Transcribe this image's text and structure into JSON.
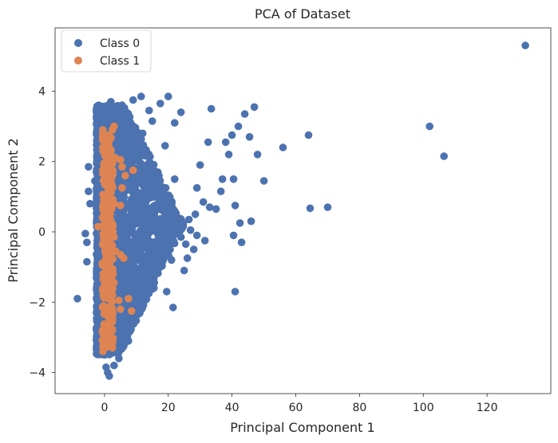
{
  "chart_data": {
    "type": "scatter",
    "title": "PCA of Dataset",
    "xlabel": "Principal Component 1",
    "ylabel": "Principal Component 2",
    "xlim": [
      -15.5,
      140
    ],
    "ylim": [
      -4.6,
      5.8
    ],
    "xticks": [
      0,
      20,
      40,
      60,
      80,
      100,
      120
    ],
    "yticks": [
      -4,
      -2,
      0,
      2,
      4
    ],
    "xtick_labels": [
      "0",
      "20",
      "40",
      "60",
      "80",
      "100",
      "120"
    ],
    "ytick_labels": [
      "−4",
      "−2",
      "0",
      "2",
      "4"
    ],
    "grid": false,
    "legend_position": "upper-left",
    "colors": {
      "Class 0": "#4c72b0",
      "Class 1": "#dd8452"
    },
    "series": [
      {
        "name": "Class 0",
        "points": [
          [
            132,
            5.3
          ],
          [
            102,
            3.0
          ],
          [
            106.5,
            2.15
          ],
          [
            64,
            2.75
          ],
          [
            56,
            2.4
          ],
          [
            70,
            0.7
          ],
          [
            64.5,
            0.67
          ],
          [
            47,
            3.55
          ],
          [
            44,
            3.35
          ],
          [
            42,
            3.0
          ],
          [
            40,
            2.75
          ],
          [
            38,
            2.55
          ],
          [
            45.5,
            2.7
          ],
          [
            48,
            2.2
          ],
          [
            50,
            1.45
          ],
          [
            46,
            0.3
          ],
          [
            41,
            0.75
          ],
          [
            42.5,
            0.25
          ],
          [
            40.5,
            -0.1
          ],
          [
            43,
            -0.3
          ],
          [
            41,
            -1.7
          ],
          [
            33.5,
            3.5
          ],
          [
            32.5,
            2.55
          ],
          [
            39,
            2.2
          ],
          [
            37,
            1.5
          ],
          [
            40.5,
            1.5
          ],
          [
            36.5,
            1.15
          ],
          [
            29,
            1.25
          ],
          [
            31,
            0.85
          ],
          [
            35,
            0.65
          ],
          [
            33,
            0.7
          ],
          [
            28.5,
            0.5
          ],
          [
            26.5,
            0.35
          ],
          [
            29,
            -0.1
          ],
          [
            31.5,
            -0.25
          ],
          [
            27,
            0.05
          ],
          [
            24,
            -0.15
          ],
          [
            25.5,
            -0.35
          ],
          [
            28,
            -0.5
          ],
          [
            26,
            -0.75
          ],
          [
            25,
            -1.1
          ],
          [
            22,
            3.1
          ],
          [
            20,
            3.85
          ],
          [
            17.5,
            3.65
          ],
          [
            11.5,
            3.85
          ],
          [
            19,
            2.45
          ],
          [
            22,
            1.5
          ],
          [
            21,
            -0.8
          ],
          [
            21.5,
            -2.15
          ],
          [
            19.5,
            -1.7
          ],
          [
            15.5,
            -1.6
          ],
          [
            10,
            -2.2
          ],
          [
            7.5,
            -3.1
          ],
          [
            4.5,
            -3.6
          ],
          [
            -8.5,
            -1.9
          ],
          [
            -5.5,
            -0.85
          ],
          [
            -5.5,
            -0.3
          ],
          [
            -6,
            -0.05
          ],
          [
            -5,
            1.85
          ],
          [
            -5,
            1.15
          ],
          [
            -4.5,
            0.8
          ],
          [
            -3,
            1.45
          ],
          [
            1,
            -4.0
          ],
          [
            1.5,
            -4.1
          ],
          [
            0.5,
            -3.85
          ],
          [
            3,
            -3.8
          ],
          [
            14,
            3.45
          ],
          [
            15,
            3.15
          ],
          [
            24,
            3.4
          ],
          [
            12,
            2.8
          ],
          [
            30,
            1.9
          ],
          [
            2,
            3.7
          ],
          [
            5.5,
            3.6
          ],
          [
            9,
            3.75
          ]
        ],
        "cloud": true,
        "cloud_note": "dense cloud of thousands of points, approx x 0..25, y -3.5..3.6"
      },
      {
        "name": "Class 1",
        "points": [
          [
            -0.5,
            2.9
          ],
          [
            -0.5,
            2.6
          ],
          [
            2.5,
            2.9
          ],
          [
            3,
            3.0
          ],
          [
            0,
            2.35
          ],
          [
            2,
            2.1
          ],
          [
            3.5,
            2.1
          ],
          [
            5,
            2.05
          ],
          [
            5.5,
            1.85
          ],
          [
            9,
            1.75
          ],
          [
            6.5,
            1.6
          ],
          [
            2.5,
            1.7
          ],
          [
            1,
            1.5
          ],
          [
            5.5,
            1.25
          ],
          [
            2,
            1.1
          ],
          [
            3,
            0.8
          ],
          [
            5,
            0.75
          ],
          [
            -2,
            0.15
          ],
          [
            1,
            0.1
          ],
          [
            3,
            -0.15
          ],
          [
            3.5,
            -0.55
          ],
          [
            5,
            -0.65
          ],
          [
            6,
            -0.75
          ],
          [
            0.5,
            -1.05
          ],
          [
            3,
            -1.45
          ],
          [
            2.5,
            -1.8
          ],
          [
            4.5,
            -1.95
          ],
          [
            7.5,
            -1.9
          ],
          [
            2.5,
            -2.25
          ],
          [
            5,
            -2.2
          ],
          [
            8.5,
            -2.25
          ],
          [
            0,
            -2.7
          ],
          [
            2.5,
            -3.3
          ],
          [
            0,
            -3.05
          ],
          [
            -0.5,
            -3.4
          ],
          [
            0.5,
            -0.3
          ],
          [
            1,
            0.6
          ],
          [
            0.5,
            -1.6
          ],
          [
            1,
            -2.4
          ]
        ],
        "column": true,
        "column_note": "dense vertical band of points at x ~ -0.5..3, y -3.4..2.9"
      }
    ]
  }
}
